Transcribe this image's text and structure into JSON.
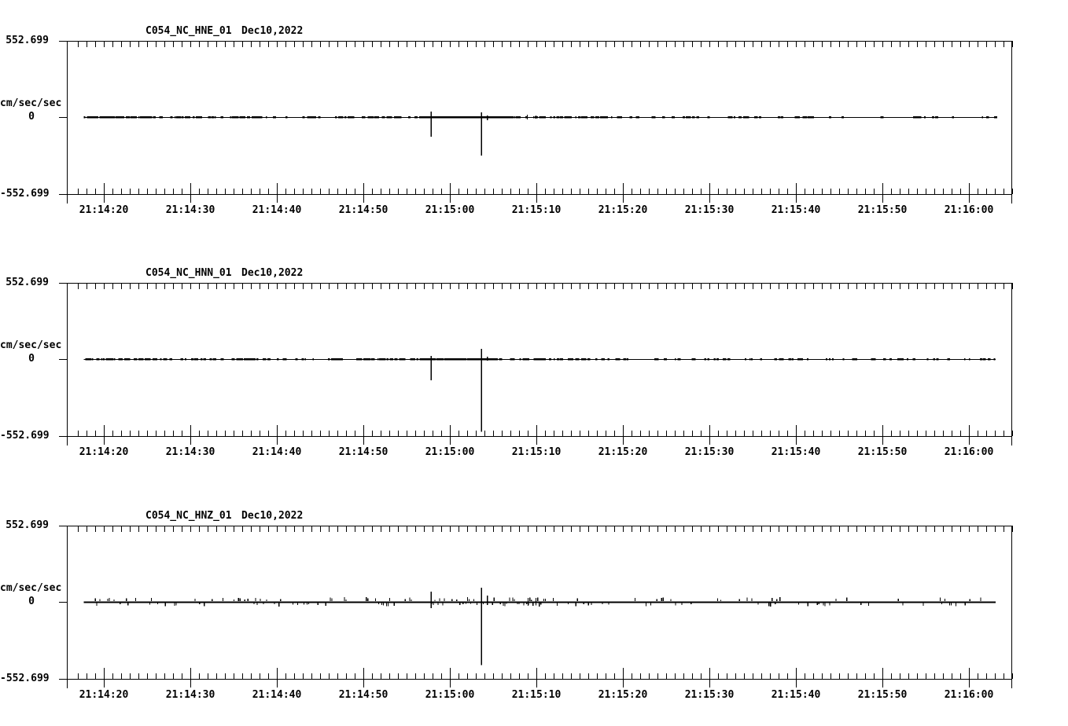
{
  "page": {
    "background_color": "#ffffff",
    "ink_color": "#000000"
  },
  "chart_data": [
    {
      "type": "line",
      "title": "C054_NC_HNE_01",
      "date": "Dec10,2022",
      "ylabel": "cm/sec/sec",
      "y_max_label": "552.699",
      "y_zero_label": "0",
      "y_min_label": "-552.699",
      "ylim": [
        -552.699,
        552.699
      ],
      "x_tick_labels": [
        "21:14:20",
        "21:14:30",
        "21:14:40",
        "21:14:50",
        "21:15:00",
        "21:15:10",
        "21:15:20",
        "21:15:30",
        "21:15:40",
        "21:15:50",
        "21:16:00"
      ],
      "x_tick_interval_sec": 10,
      "x_minor_tick_interval_sec": 1,
      "axis_start_offset_sec": -4.3,
      "axis_end_offset_sec": 105.0,
      "trace_start_offset_sec": -2.3,
      "trace_end_offset_sec": 103.1,
      "baseline_value": 0,
      "baseline_thickness_px": 1,
      "spikes": [
        {
          "time": "21:14:57.8",
          "offset_sec": 37.8,
          "up": 40,
          "down": -142
        },
        {
          "time": "21:15:03.6",
          "offset_sec": 43.6,
          "up": 34,
          "down": -279
        },
        {
          "time": "21:15:04.3",
          "offset_sec": 44.3,
          "up": 11,
          "down": -23
        },
        {
          "time": "21:15:08.9",
          "offset_sec": 48.9,
          "up": 17,
          "down": -17
        },
        {
          "time": "21:15:09.9",
          "offset_sec": 49.9,
          "up": 11,
          "down": -11
        }
      ],
      "noise_regions": [
        {
          "start_sec": -2.3,
          "end_sec": 5.5,
          "density": 0.85,
          "style": "dash"
        },
        {
          "start_sec": 5.5,
          "end_sec": 9.0,
          "density": 0.22,
          "style": "dash"
        },
        {
          "start_sec": 9.0,
          "end_sec": 19.0,
          "density": 0.55,
          "style": "dash"
        },
        {
          "start_sec": 19.0,
          "end_sec": 30.5,
          "density": 0.3,
          "style": "dash"
        },
        {
          "start_sec": 30.5,
          "end_sec": 36.6,
          "density": 0.55,
          "style": "dash"
        },
        {
          "start_sec": 36.6,
          "end_sec": 48.0,
          "density": 1.0,
          "style": "dash"
        },
        {
          "start_sec": 48.0,
          "end_sec": 57.0,
          "density": 0.5,
          "style": "dash"
        },
        {
          "start_sec": 57.0,
          "end_sec": 77.0,
          "density": 0.3,
          "style": "dash"
        },
        {
          "start_sec": 77.0,
          "end_sec": 103.1,
          "density": 0.16,
          "style": "dash"
        }
      ],
      "noise_seed": 7
    },
    {
      "type": "line",
      "title": "C054_NC_HNN_01",
      "date": "Dec10,2022",
      "ylabel": "cm/sec/sec",
      "y_max_label": "552.699",
      "y_zero_label": "0",
      "y_min_label": "-552.699",
      "ylim": [
        -552.699,
        552.699
      ],
      "x_tick_labels": [
        "21:14:20",
        "21:14:30",
        "21:14:40",
        "21:14:50",
        "21:15:00",
        "21:15:10",
        "21:15:20",
        "21:15:30",
        "21:15:40",
        "21:15:50",
        "21:16:00"
      ],
      "x_tick_interval_sec": 10,
      "x_minor_tick_interval_sec": 1,
      "axis_start_offset_sec": -4.3,
      "axis_end_offset_sec": 105.0,
      "trace_start_offset_sec": -2.3,
      "trace_end_offset_sec": 103.1,
      "baseline_value": 0,
      "baseline_thickness_px": 1,
      "spikes": [
        {
          "time": "21:14:57.8",
          "offset_sec": 37.8,
          "up": 23,
          "down": -154
        },
        {
          "time": "21:15:03.6",
          "offset_sec": 43.6,
          "up": 74,
          "down": -524
        },
        {
          "time": "21:15:04.3",
          "offset_sec": 44.3,
          "up": 17,
          "down": -11
        }
      ],
      "noise_regions": [
        {
          "start_sec": -2.3,
          "end_sec": 9.0,
          "density": 0.5,
          "style": "dash"
        },
        {
          "start_sec": 9.0,
          "end_sec": 30.0,
          "density": 0.35,
          "style": "dash"
        },
        {
          "start_sec": 30.0,
          "end_sec": 36.6,
          "density": 0.5,
          "style": "dash"
        },
        {
          "start_sec": 36.6,
          "end_sec": 44.8,
          "density": 1.0,
          "style": "dash"
        },
        {
          "start_sec": 44.8,
          "end_sec": 55.0,
          "density": 0.45,
          "style": "dash"
        },
        {
          "start_sec": 55.0,
          "end_sec": 82.0,
          "density": 0.28,
          "style": "dash"
        },
        {
          "start_sec": 82.0,
          "end_sec": 103.1,
          "density": 0.14,
          "style": "dash"
        }
      ],
      "noise_seed": 13
    },
    {
      "type": "line",
      "title": "C054_NC_HNZ_01",
      "date": "Dec10,2022",
      "ylabel": "cm/sec/sec",
      "y_max_label": "552.699",
      "y_zero_label": "0",
      "y_min_label": "-552.699",
      "ylim": [
        -552.699,
        552.699
      ],
      "x_tick_labels": [
        "21:14:20",
        "21:14:30",
        "21:14:40",
        "21:14:50",
        "21:15:00",
        "21:15:10",
        "21:15:20",
        "21:15:30",
        "21:15:40",
        "21:15:50",
        "21:16:00"
      ],
      "x_tick_interval_sec": 10,
      "x_minor_tick_interval_sec": 1,
      "axis_start_offset_sec": -4.3,
      "axis_end_offset_sec": 105.0,
      "trace_start_offset_sec": -2.3,
      "trace_end_offset_sec": 103.1,
      "baseline_value": 0,
      "baseline_thickness_px": 2,
      "spikes": [
        {
          "time": "21:14:57.8",
          "offset_sec": 37.8,
          "up": 74,
          "down": -46
        },
        {
          "time": "21:15:03.6",
          "offset_sec": 43.6,
          "up": 103,
          "down": -456
        },
        {
          "time": "21:15:04.3",
          "offset_sec": 44.3,
          "up": 46,
          "down": -23
        },
        {
          "time": "21:15:09.0",
          "offset_sec": 49.0,
          "up": 28,
          "down": -28
        },
        {
          "time": "21:15:09.9",
          "offset_sec": 49.9,
          "up": 28,
          "down": -26
        }
      ],
      "noise_regions": [
        {
          "start_sec": -2.3,
          "end_sec": 36.6,
          "density": 0.3,
          "style": "blip"
        },
        {
          "start_sec": 36.6,
          "end_sec": 52.0,
          "density": 0.55,
          "style": "blip"
        },
        {
          "start_sec": 52.0,
          "end_sec": 103.1,
          "density": 0.18,
          "style": "blip"
        }
      ],
      "noise_seed": 21
    }
  ]
}
